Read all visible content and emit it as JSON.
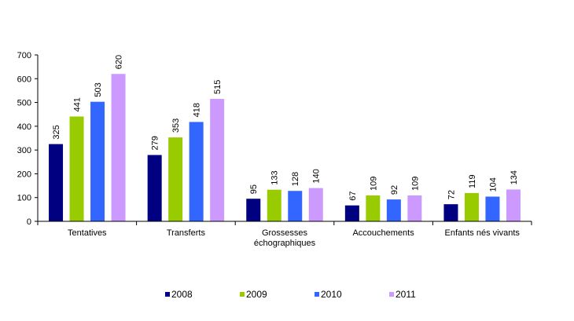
{
  "chart_data": {
    "type": "bar",
    "categories": [
      "Tentatives",
      "Transferts",
      "Grossesses échographiques",
      "Accouchements",
      "Enfants nés vivants"
    ],
    "category_lines": [
      [
        "Tentatives"
      ],
      [
        "Transferts"
      ],
      [
        "Grossesses",
        "échographiques"
      ],
      [
        "Accouchements"
      ],
      [
        "Enfants nés vivants"
      ]
    ],
    "series": [
      {
        "name": "2008",
        "color": "#000080",
        "values": [
          325,
          279,
          95,
          67,
          72
        ]
      },
      {
        "name": "2009",
        "color": "#99CC00",
        "values": [
          441,
          353,
          133,
          109,
          119
        ]
      },
      {
        "name": "2010",
        "color": "#3366FF",
        "values": [
          503,
          418,
          128,
          92,
          104
        ]
      },
      {
        "name": "2011",
        "color": "#CC99FF",
        "values": [
          620,
          515,
          140,
          109,
          134
        ]
      }
    ],
    "title": "",
    "xlabel": "",
    "ylabel": "",
    "ylim": [
      0,
      700
    ],
    "yticks": [
      0,
      100,
      200,
      300,
      400,
      500,
      600,
      700
    ],
    "grid": false,
    "legend_position": "bottom"
  }
}
